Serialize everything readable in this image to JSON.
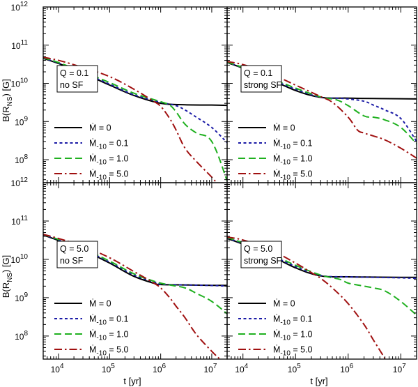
{
  "colors": {
    "mdot0": "#000000",
    "mdot01": "#1a1aa6",
    "mdot10": "#1fb01f",
    "mdot50": "#a01010"
  },
  "axes": {
    "ylabel_main": "B(R",
    "ylabel_sub": "NS",
    "ylabel_tail": ") [G]",
    "xlabel": "t [yr]",
    "y_base": "10",
    "y_exponents": [
      "8",
      "9",
      "10",
      "11",
      "12"
    ],
    "x_exponents": [
      "4",
      "5",
      "6",
      "7"
    ],
    "x_base": "10"
  },
  "legend": [
    {
      "label": "Ṁ = 0",
      "series": "mdot0"
    },
    {
      "label": "Ṁ",
      "sub": "-10",
      "value": " = 0.1",
      "series": "mdot01"
    },
    {
      "label": "Ṁ",
      "sub": "-10",
      "value": " = 1.0",
      "series": "mdot10"
    },
    {
      "label": "Ṁ",
      "sub": "-10",
      "value": " = 5.0",
      "series": "mdot50"
    }
  ],
  "chart_data": [
    {
      "type": "line",
      "panel": "top-left",
      "annotation": [
        "Q = 0.1",
        "no SF"
      ],
      "xscale": "log",
      "yscale": "log",
      "xlim": [
        5000,
        20000000
      ],
      "ylim": [
        25000000,
        1000000000000
      ],
      "xlabel": "",
      "ylabel": "B(R_NS) [G]",
      "series": [
        {
          "name": "mdot0",
          "x": [
            5000,
            10000,
            30000,
            100000,
            300000,
            1000000,
            3000000,
            10000000,
            20000000
          ],
          "y": [
            45000000000,
            33000000000,
            18500000000,
            9000000000,
            4800000000,
            3000000000,
            2750000000,
            2700000000,
            2650000000
          ]
        },
        {
          "name": "mdot01",
          "x": [
            5000,
            10000,
            30000,
            100000,
            300000,
            1000000,
            2000000,
            3000000,
            5000000,
            10000000,
            20000000
          ],
          "y": [
            46000000000,
            34000000000,
            19000000000,
            9500000000,
            5000000000,
            3200000000,
            2600000000,
            2000000000,
            1300000000,
            700000000,
            280000000
          ]
        },
        {
          "name": "mdot10",
          "x": [
            5000,
            10000,
            30000,
            100000,
            300000,
            1000000,
            1500000,
            2000000,
            3000000,
            5000000,
            10000000,
            20000000
          ],
          "y": [
            47000000000,
            35000000000,
            20000000000,
            10500000000,
            5500000000,
            3300000000,
            2700000000,
            1800000000,
            850000000,
            500000000,
            300000000,
            28000000
          ]
        },
        {
          "name": "mdot50",
          "x": [
            5000,
            10000,
            30000,
            100000,
            300000,
            700000,
            1000000,
            1500000,
            2000000,
            3000000,
            5000000,
            10000000,
            12000000
          ],
          "y": [
            48000000000,
            40000000000,
            26000000000,
            15000000000,
            7000000000,
            3500000000,
            2500000000,
            1200000000,
            600000000,
            200000000,
            90000000,
            35000000,
            26000000
          ]
        }
      ]
    },
    {
      "type": "line",
      "panel": "top-right",
      "annotation": [
        "Q = 0.1",
        "strong SF"
      ],
      "xscale": "log",
      "yscale": "log",
      "xlim": [
        5000,
        20000000
      ],
      "ylim": [
        25000000,
        1000000000000
      ],
      "series": [
        {
          "name": "mdot0",
          "x": [
            5000,
            10000,
            30000,
            100000,
            300000,
            1000000,
            3000000,
            10000000,
            20000000
          ],
          "y": [
            35000000000,
            25000000000,
            13500000000,
            6500000000,
            4300000000,
            4100000000,
            4000000000,
            3950000000,
            3900000000
          ]
        },
        {
          "name": "mdot01",
          "x": [
            5000,
            10000,
            30000,
            100000,
            300000,
            600000,
            1000000,
            2000000,
            3000000,
            5000000,
            10000000,
            20000000
          ],
          "y": [
            35500000000,
            25500000000,
            14000000000,
            7000000000,
            4300000000,
            4100000000,
            3900000000,
            3400000000,
            2700000000,
            2000000000,
            1200000000,
            300000000
          ]
        },
        {
          "name": "mdot10",
          "x": [
            5000,
            10000,
            30000,
            100000,
            300000,
            600000,
            1000000,
            2000000,
            3000000,
            5000000,
            10000000,
            20000000
          ],
          "y": [
            36000000000,
            26000000000,
            14500000000,
            7500000000,
            4400000000,
            3700000000,
            2600000000,
            1400000000,
            1300000000,
            1100000000,
            700000000,
            260000000
          ]
        },
        {
          "name": "mdot50",
          "x": [
            5000,
            10000,
            30000,
            100000,
            300000,
            500000,
            1000000,
            1500000,
            2000000,
            3000000,
            5000000,
            10000000,
            20000000
          ],
          "y": [
            37000000000,
            31000000000,
            19000000000,
            9000000000,
            4500000000,
            3200000000,
            1300000000,
            600000000,
            500000000,
            420000000,
            330000000,
            200000000,
            110000000
          ]
        }
      ]
    },
    {
      "type": "line",
      "panel": "bottom-left",
      "annotation": [
        "Q = 5.0",
        "no SF"
      ],
      "xscale": "log",
      "yscale": "log",
      "xlim": [
        5000,
        20000000
      ],
      "ylim": [
        25000000,
        1000000000000
      ],
      "xlabel": "t [yr]",
      "ylabel": "B(R_NS) [G]",
      "series": [
        {
          "name": "mdot0",
          "x": [
            5000,
            10000,
            30000,
            100000,
            300000,
            800000,
            1000000,
            3000000,
            10000000,
            20000000
          ],
          "y": [
            43000000000,
            31000000000,
            17500000000,
            8000000000,
            3600000000,
            2300000000,
            2200000000,
            2150000000,
            2100000000,
            2100000000
          ]
        },
        {
          "name": "mdot01",
          "x": [
            5000,
            10000,
            30000,
            100000,
            300000,
            800000,
            1000000,
            3000000,
            10000000,
            20000000
          ],
          "y": [
            44000000000,
            32000000000,
            18000000000,
            8500000000,
            3900000000,
            2500000000,
            2250000000,
            2150000000,
            2080000000,
            2000000000
          ]
        },
        {
          "name": "mdot10",
          "x": [
            5000,
            10000,
            30000,
            100000,
            300000,
            800000,
            1500000,
            3000000,
            5000000,
            10000000,
            20000000
          ],
          "y": [
            45000000000,
            33000000000,
            19000000000,
            9000000000,
            4200000000,
            2600000000,
            2150000000,
            1800000000,
            1300000000,
            800000000,
            380000000
          ]
        },
        {
          "name": "mdot50",
          "x": [
            5000,
            10000,
            30000,
            100000,
            300000,
            700000,
            1000000,
            1500000,
            2000000,
            3000000,
            5000000,
            10000000,
            14000000
          ],
          "y": [
            45000000000,
            35000000000,
            22000000000,
            11000000000,
            4800000000,
            2500000000,
            1800000000,
            1000000000,
            600000000,
            300000000,
            110000000,
            40000000,
            26000000
          ]
        }
      ]
    },
    {
      "type": "line",
      "panel": "bottom-right",
      "annotation": [
        "Q = 5.0",
        "strong SF"
      ],
      "xscale": "log",
      "yscale": "log",
      "xlim": [
        5000,
        20000000
      ],
      "ylim": [
        25000000,
        1000000000000
      ],
      "xlabel": "t [yr]",
      "series": [
        {
          "name": "mdot0",
          "x": [
            5000,
            10000,
            30000,
            100000,
            300000,
            1000000,
            3000000,
            10000000,
            20000000
          ],
          "y": [
            35000000000,
            25000000000,
            13500000000,
            6000000000,
            3700000000,
            3500000000,
            3450000000,
            3400000000,
            3400000000
          ]
        },
        {
          "name": "mdot01",
          "x": [
            5000,
            10000,
            30000,
            100000,
            300000,
            1000000,
            3000000,
            10000000,
            20000000
          ],
          "y": [
            36000000000,
            26000000000,
            14000000000,
            6500000000,
            3800000000,
            3500000000,
            3400000000,
            3300000000,
            3200000000
          ]
        },
        {
          "name": "mdot10",
          "x": [
            5000,
            10000,
            30000,
            100000,
            300000,
            700000,
            1000000,
            2000000,
            3000000,
            5000000,
            10000000,
            20000000
          ],
          "y": [
            37000000000,
            27000000000,
            15000000000,
            7000000000,
            3900000000,
            3000000000,
            2400000000,
            2000000000,
            1800000000,
            1500000000,
            800000000,
            350000000
          ]
        },
        {
          "name": "mdot50",
          "x": [
            5000,
            10000,
            30000,
            100000,
            200000,
            300000,
            500000,
            1000000,
            2000000,
            3000000,
            5000000
          ],
          "y": [
            38000000000,
            32000000000,
            19000000000,
            8000000000,
            4500000000,
            3200000000,
            1800000000,
            700000000,
            200000000,
            80000000,
            26000000
          ]
        }
      ]
    }
  ]
}
